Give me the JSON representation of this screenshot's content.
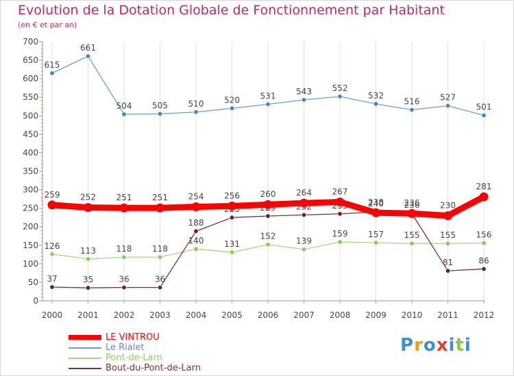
{
  "chart_data": {
    "type": "line",
    "title": "Evolution de la Dotation Globale de Fonctionnement par Habitant",
    "subtitle": "(en € et par an)",
    "x": [
      "2000",
      "2001",
      "2002",
      "2003",
      "2004",
      "2005",
      "2006",
      "2007",
      "2008",
      "2009",
      "2010",
      "2011",
      "2012"
    ],
    "yticks": [
      0,
      50,
      100,
      150,
      200,
      250,
      300,
      350,
      400,
      450,
      500,
      550,
      600,
      650,
      700
    ],
    "ylim": [
      0,
      700
    ],
    "grid": "vertical",
    "series": [
      {
        "name": "Le Rialet",
        "color": "#6a9fcf",
        "marker": "#3f86c6",
        "values": [
          615,
          661,
          504,
          505,
          510,
          520,
          531,
          543,
          552,
          532,
          516,
          527,
          501
        ]
      },
      {
        "name": "Pont-de-Larn",
        "color": "#a5d97f",
        "marker": "#84cc55",
        "values": [
          126,
          113,
          118,
          118,
          140,
          131,
          152,
          139,
          159,
          157,
          155,
          155,
          156
        ]
      },
      {
        "name": "Bout-du-Pont-de-Larn",
        "color": "#7a2f30",
        "marker": "#6a1f22",
        "values": [
          37,
          35,
          36,
          36,
          188,
          225,
          229,
          232,
          235,
          240,
          236,
          81,
          86
        ]
      },
      {
        "name": "LE VINTROU",
        "color": "#ff0000",
        "marker": "#ff0000",
        "values": [
          259,
          252,
          251,
          251,
          254,
          256,
          260,
          264,
          267,
          238,
          236,
          230,
          281
        ]
      }
    ],
    "legend": [
      "LE VINTROU",
      "Le Rialet",
      "Pont-de-Larn",
      "Bout-du-Pont-de-Larn"
    ],
    "legend_position": "bottom-left"
  },
  "brand": {
    "letters": [
      "P",
      "r",
      "o",
      "x",
      "i",
      "t",
      "i"
    ],
    "colors": [
      "#3a8fd6",
      "#f29b1c",
      "#3a8fd6",
      "#e23d2e",
      "#3a8fd6",
      "#8cc63f",
      "#3a8fd6"
    ]
  }
}
